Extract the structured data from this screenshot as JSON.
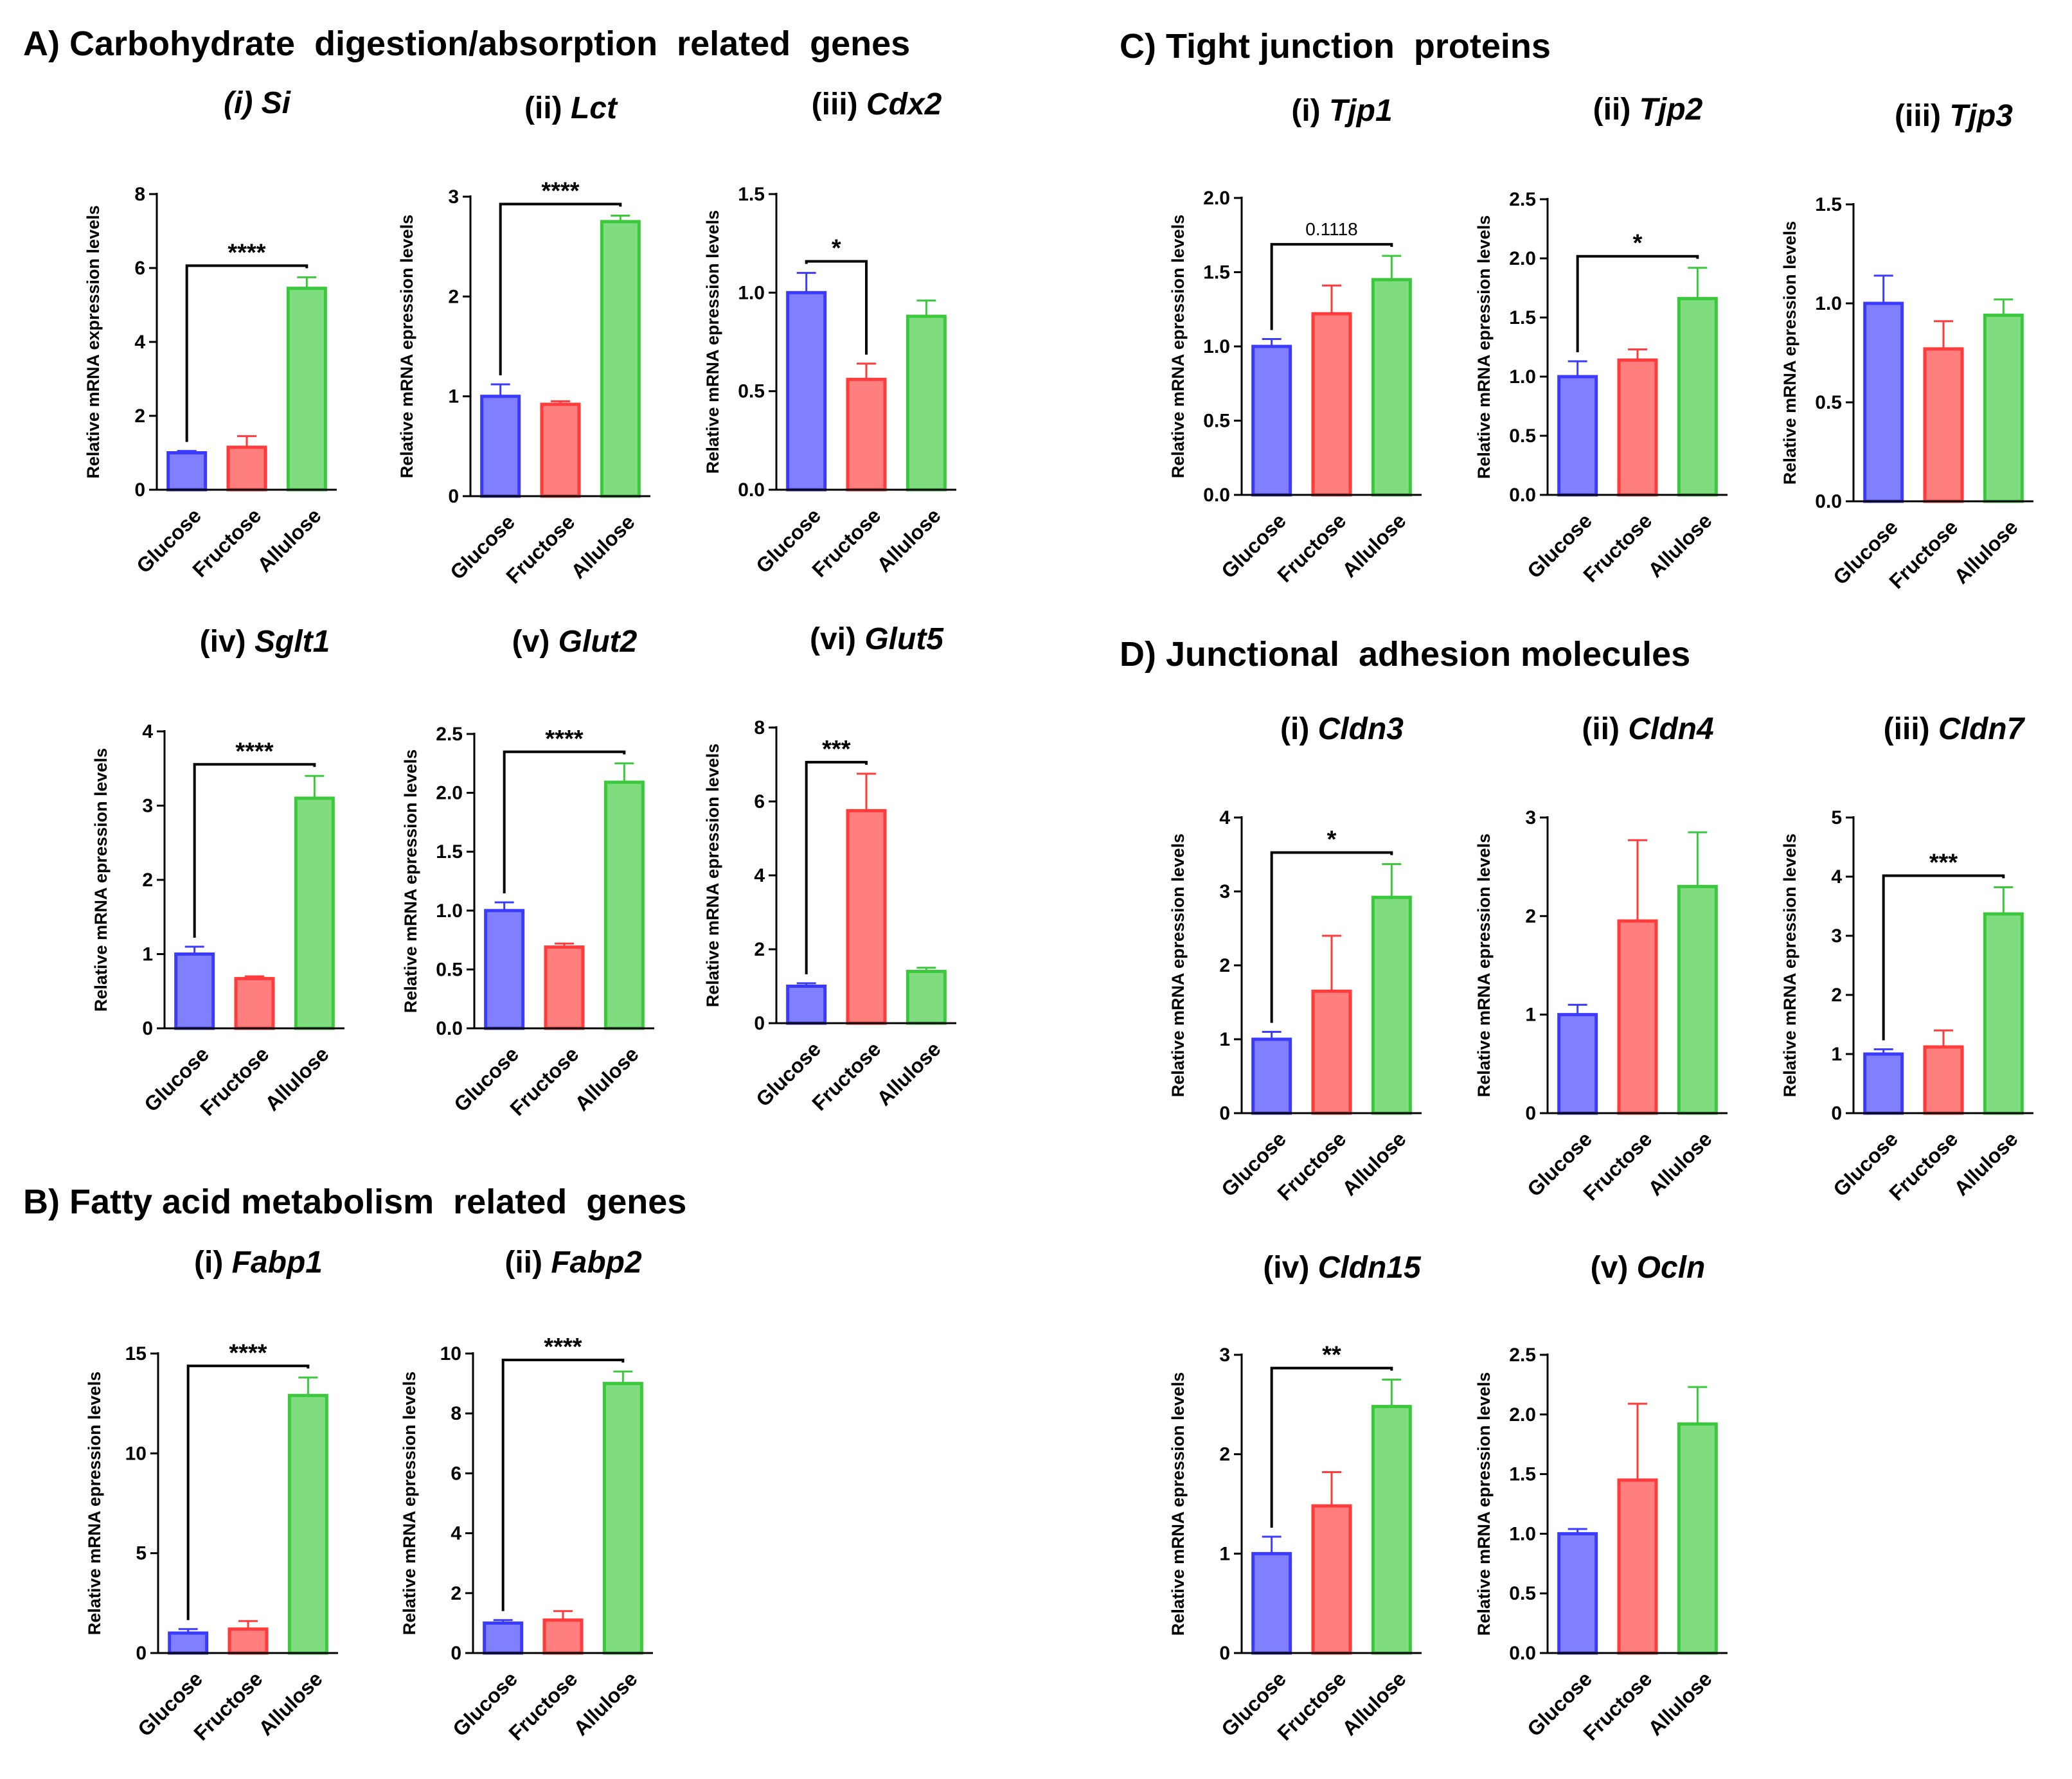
{
  "sections": [
    {
      "id": "A",
      "title": "A) Carbohydrate  digestion/absorption  related  genes"
    },
    {
      "id": "B",
      "title": "B) Fatty acid metabolism  related  genes"
    },
    {
      "id": "C",
      "title": "C) Tight junction  proteins"
    },
    {
      "id": "D",
      "title": "D) Junctional  adhesion molecules"
    }
  ],
  "colors": {
    "Glucose": {
      "fill": "#8080ff",
      "stroke": "#3b3bff"
    },
    "Fructose": {
      "fill": "#ff7f7f",
      "stroke": "#ff3b3b"
    },
    "Allulose": {
      "fill": "#7fdc7f",
      "stroke": "#3cc83c"
    }
  },
  "chart_data": [
    {
      "id": "A-i",
      "type": "bar",
      "num": "(i)",
      "gene": "Si",
      "title_italic_all": true,
      "ylabel": "Relative mRNA expression levels",
      "categories": [
        "Glucose",
        "Fructose",
        "Allulose"
      ],
      "values": [
        1.0,
        1.15,
        5.45
      ],
      "errors": [
        0.05,
        0.3,
        0.3
      ],
      "ylim": [
        0,
        8
      ],
      "yticks": [
        0,
        2,
        4,
        6,
        8
      ],
      "tick_labels": [
        "0",
        "2",
        "4",
        "6",
        "8"
      ],
      "sig": {
        "from": 0,
        "to": 2,
        "label": "****"
      }
    },
    {
      "id": "A-ii",
      "type": "bar",
      "num": "(ii)",
      "gene": "Lct",
      "ylabel": "Relative mRNA epression levels",
      "categories": [
        "Glucose",
        "Fructose",
        "Allulose"
      ],
      "values": [
        1.0,
        0.92,
        2.75
      ],
      "errors": [
        0.12,
        0.03,
        0.06
      ],
      "ylim": [
        0,
        3
      ],
      "yticks": [
        0,
        1,
        2,
        3
      ],
      "tick_labels": [
        "0",
        "1",
        "2",
        "3"
      ],
      "sig": {
        "from": 0,
        "to": 2,
        "label": "****"
      }
    },
    {
      "id": "A-iii",
      "type": "bar",
      "num": "(iii)",
      "gene": "Cdx2",
      "ylabel": "Relative mRNA epression levels",
      "categories": [
        "Glucose",
        "Fructose",
        "Allulose"
      ],
      "values": [
        1.0,
        0.56,
        0.88
      ],
      "errors": [
        0.1,
        0.08,
        0.08
      ],
      "ylim": [
        0,
        1.5
      ],
      "yticks": [
        0,
        0.5,
        1,
        1.5
      ],
      "tick_labels": [
        "0.0",
        "0.5",
        "1.0",
        "1.5"
      ],
      "sig": {
        "from": 0,
        "to": 1,
        "label": "*"
      }
    },
    {
      "id": "A-iv",
      "type": "bar",
      "num": "(iv)",
      "gene": "Sglt1",
      "ylabel": "Relative mRNA epression levels",
      "categories": [
        "Glucose",
        "Fructose",
        "Allulose"
      ],
      "values": [
        1.0,
        0.67,
        3.1
      ],
      "errors": [
        0.1,
        0.03,
        0.3
      ],
      "ylim": [
        0,
        4
      ],
      "yticks": [
        0,
        1,
        2,
        3,
        4
      ],
      "tick_labels": [
        "0",
        "1",
        "2",
        "3",
        "4"
      ],
      "sig": {
        "from": 0,
        "to": 2,
        "label": "****"
      }
    },
    {
      "id": "A-v",
      "type": "bar",
      "num": "(v)",
      "gene": "Glut2",
      "ylabel": "Relative mRNA epression levels",
      "categories": [
        "Glucose",
        "Fructose",
        "Allulose"
      ],
      "values": [
        1.0,
        0.69,
        2.09
      ],
      "errors": [
        0.07,
        0.03,
        0.16
      ],
      "ylim": [
        0,
        2.5
      ],
      "yticks": [
        0,
        0.5,
        1,
        1.5,
        2,
        2.5
      ],
      "tick_labels": [
        "0.0",
        "0.5",
        "1.0",
        "1.5",
        "2.0",
        "2.5"
      ],
      "sig": {
        "from": 0,
        "to": 2,
        "label": "****"
      }
    },
    {
      "id": "A-vi",
      "type": "bar",
      "num": "(vi)",
      "gene": "Glut5",
      "ylabel": "Relative mRNA epression levels",
      "categories": [
        "Glucose",
        "Fructose",
        "Allulose"
      ],
      "values": [
        1.0,
        5.75,
        1.4
      ],
      "errors": [
        0.08,
        1.0,
        0.1
      ],
      "ylim": [
        0,
        8
      ],
      "yticks": [
        0,
        2,
        4,
        6,
        8
      ],
      "tick_labels": [
        "0",
        "2",
        "4",
        "6",
        "8"
      ],
      "sig": {
        "from": 0,
        "to": 1,
        "label": "***"
      }
    },
    {
      "id": "B-i",
      "type": "bar",
      "num": "(i)",
      "gene": "Fabp1",
      "ylabel": "Relative mRNA epression levels",
      "categories": [
        "Glucose",
        "Fructose",
        "Allulose"
      ],
      "values": [
        1.0,
        1.2,
        12.9
      ],
      "errors": [
        0.2,
        0.4,
        0.9
      ],
      "ylim": [
        0,
        15
      ],
      "yticks": [
        0,
        5,
        10,
        15
      ],
      "tick_labels": [
        "0",
        "5",
        "10",
        "15"
      ],
      "sig": {
        "from": 0,
        "to": 2,
        "label": "****"
      }
    },
    {
      "id": "B-ii",
      "type": "bar",
      "num": "(ii)",
      "gene": "Fabp2",
      "ylabel": "Relative mRNA epression levels",
      "categories": [
        "Glucose",
        "Fructose",
        "Allulose"
      ],
      "values": [
        1.0,
        1.1,
        9.0
      ],
      "errors": [
        0.1,
        0.3,
        0.4
      ],
      "ylim": [
        0,
        10
      ],
      "yticks": [
        0,
        2,
        4,
        6,
        8,
        10
      ],
      "tick_labels": [
        "0",
        "2",
        "4",
        "6",
        "8",
        "10"
      ],
      "sig": {
        "from": 0,
        "to": 2,
        "label": "****"
      }
    },
    {
      "id": "C-i",
      "type": "bar",
      "num": "(i)",
      "gene": "Tjp1",
      "ylabel": "Relative mRNA epression levels",
      "categories": [
        "Glucose",
        "Fructose",
        "Allulose"
      ],
      "values": [
        1.0,
        1.22,
        1.45
      ],
      "errors": [
        0.05,
        0.19,
        0.16
      ],
      "ylim": [
        0,
        2
      ],
      "yticks": [
        0,
        0.5,
        1,
        1.5,
        2
      ],
      "tick_labels": [
        "0.0",
        "0.5",
        "1.0",
        "1.5",
        "2.0"
      ],
      "sig": {
        "from": 0,
        "to": 2,
        "label": "0.1118"
      }
    },
    {
      "id": "C-ii",
      "type": "bar",
      "num": "(ii)",
      "gene": "Tjp2",
      "ylabel": "Relative mRNA epression levels",
      "categories": [
        "Glucose",
        "Fructose",
        "Allulose"
      ],
      "values": [
        1.0,
        1.14,
        1.66
      ],
      "errors": [
        0.13,
        0.09,
        0.26
      ],
      "ylim": [
        0,
        2.5
      ],
      "yticks": [
        0,
        0.5,
        1,
        1.5,
        2,
        2.5
      ],
      "tick_labels": [
        "0.0",
        "0.5",
        "1.0",
        "1.5",
        "2.0",
        "2.5"
      ],
      "sig": {
        "from": 0,
        "to": 2,
        "label": "*"
      }
    },
    {
      "id": "C-iii",
      "type": "bar",
      "num": "(iii)",
      "gene": "Tjp3",
      "ylabel": "Relative mRNA epression levels",
      "categories": [
        "Glucose",
        "Fructose",
        "Allulose"
      ],
      "values": [
        1.0,
        0.77,
        0.94
      ],
      "errors": [
        0.14,
        0.14,
        0.08
      ],
      "ylim": [
        0,
        1.5
      ],
      "yticks": [
        0,
        0.5,
        1,
        1.5
      ],
      "tick_labels": [
        "0.0",
        "0.5",
        "1.0",
        "1.5"
      ],
      "sig": null
    },
    {
      "id": "D-i",
      "type": "bar",
      "num": "(i)",
      "gene": "Cldn3",
      "ylabel": "Relative mRNA epression levels",
      "categories": [
        "Glucose",
        "Fructose",
        "Allulose"
      ],
      "values": [
        1.0,
        1.65,
        2.92
      ],
      "errors": [
        0.1,
        0.75,
        0.45
      ],
      "ylim": [
        0,
        4
      ],
      "yticks": [
        0,
        1,
        2,
        3,
        4
      ],
      "tick_labels": [
        "0",
        "1",
        "2",
        "3",
        "4"
      ],
      "sig": {
        "from": 0,
        "to": 2,
        "label": "*"
      }
    },
    {
      "id": "D-ii",
      "type": "bar",
      "num": "(ii)",
      "gene": "Cldn4",
      "ylabel": "Relative mRNA epression levels",
      "categories": [
        "Glucose",
        "Fructose",
        "Allulose"
      ],
      "values": [
        1.0,
        1.95,
        2.3
      ],
      "errors": [
        0.1,
        0.82,
        0.55
      ],
      "ylim": [
        0,
        3
      ],
      "yticks": [
        0,
        1,
        2,
        3
      ],
      "tick_labels": [
        "0",
        "1",
        "2",
        "3"
      ],
      "sig": null
    },
    {
      "id": "D-iii",
      "type": "bar",
      "num": "(iii)",
      "gene": "Cldn7",
      "ylabel": "Relative mRNA epression levels",
      "categories": [
        "Glucose",
        "Fructose",
        "Allulose"
      ],
      "values": [
        1.0,
        1.12,
        3.37
      ],
      "errors": [
        0.08,
        0.28,
        0.45
      ],
      "ylim": [
        0,
        5
      ],
      "yticks": [
        0,
        1,
        2,
        3,
        4,
        5
      ],
      "tick_labels": [
        "0",
        "1",
        "2",
        "3",
        "4",
        "5"
      ],
      "sig": {
        "from": 0,
        "to": 2,
        "label": "***"
      }
    },
    {
      "id": "D-iv",
      "type": "bar",
      "num": "(iv)",
      "gene": "Cldn15",
      "ylabel": "Relative mRNA epression levels",
      "categories": [
        "Glucose",
        "Fructose",
        "Allulose"
      ],
      "values": [
        1.0,
        1.48,
        2.48
      ],
      "errors": [
        0.17,
        0.34,
        0.27
      ],
      "ylim": [
        0,
        3
      ],
      "yticks": [
        0,
        1,
        2,
        3
      ],
      "tick_labels": [
        "0",
        "1",
        "2",
        "3"
      ],
      "sig": {
        "from": 0,
        "to": 2,
        "label": "**"
      }
    },
    {
      "id": "D-v",
      "type": "bar",
      "num": "(v)",
      "gene": "Ocln",
      "ylabel": "Relative mRNA epression levels",
      "categories": [
        "Glucose",
        "Fructose",
        "Allulose"
      ],
      "values": [
        1.0,
        1.45,
        1.92
      ],
      "errors": [
        0.04,
        0.64,
        0.31
      ],
      "ylim": [
        0,
        2.5
      ],
      "yticks": [
        0,
        0.5,
        1,
        1.5,
        2,
        2.5
      ],
      "tick_labels": [
        "0.0",
        "0.5",
        "1.0",
        "1.5",
        "2.0",
        "2.5"
      ],
      "sig": null
    }
  ]
}
